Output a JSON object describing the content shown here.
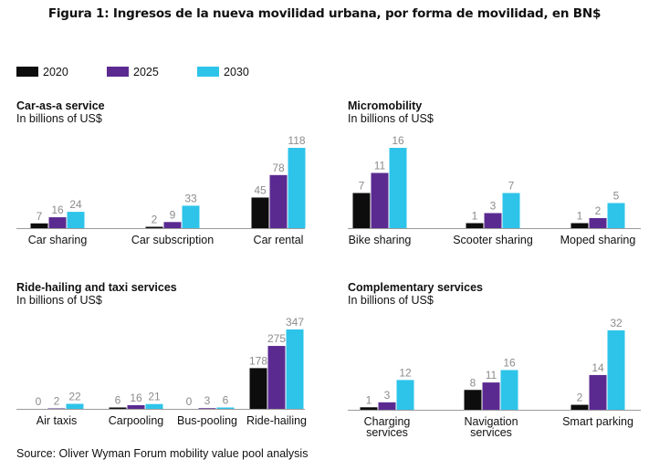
{
  "figure_title": "Figura 1: Ingresos de la nueva movilidad  urbana, por forma de movilidad,  en BN$",
  "legend": [
    {
      "label": "2020",
      "color": "#0d0d0d"
    },
    {
      "label": "2025",
      "color": "#5b2a91"
    },
    {
      "label": "2030",
      "color": "#2ec4ea"
    }
  ],
  "source": "Source: Oliver Wyman Forum mobility value pool analysis",
  "chart_data": [
    {
      "type": "bar",
      "title": "Car-as-a service",
      "subtitle": "In billions of US$",
      "categories": [
        "Car sharing",
        "Car subscription",
        "Car rental"
      ],
      "series": [
        {
          "name": "2020",
          "values": [
            7,
            2,
            45
          ]
        },
        {
          "name": "2025",
          "values": [
            16,
            9,
            78
          ]
        },
        {
          "name": "2030",
          "values": [
            24,
            33,
            118
          ]
        }
      ]
    },
    {
      "type": "bar",
      "title": "Micromobility",
      "subtitle": "In billions of US$",
      "categories": [
        "Bike sharing",
        "Scooter sharing",
        "Moped sharing"
      ],
      "series": [
        {
          "name": "2020",
          "values": [
            7,
            1,
            1
          ]
        },
        {
          "name": "2025",
          "values": [
            11,
            3,
            2
          ]
        },
        {
          "name": "2030",
          "values": [
            16,
            7,
            5
          ]
        }
      ]
    },
    {
      "type": "bar",
      "title": "Ride-hailing and taxi services",
      "subtitle": "In billions of US$",
      "categories": [
        "Air taxis",
        "Carpooling",
        "Bus-pooling",
        "Ride-hailing"
      ],
      "series": [
        {
          "name": "2020",
          "values": [
            0,
            6,
            0,
            178
          ]
        },
        {
          "name": "2025",
          "values": [
            2,
            16,
            3,
            275
          ]
        },
        {
          "name": "2030",
          "values": [
            22,
            21,
            6,
            347
          ]
        }
      ]
    },
    {
      "type": "bar",
      "title": "Complementary services",
      "subtitle": "In billions of US$",
      "categories": [
        "Charging\nservices",
        "Navigation\nservices",
        "Smart parking"
      ],
      "series": [
        {
          "name": "2020",
          "values": [
            1,
            8,
            2
          ]
        },
        {
          "name": "2025",
          "values": [
            3,
            11,
            14
          ]
        },
        {
          "name": "2030",
          "values": [
            12,
            16,
            32
          ]
        }
      ]
    }
  ]
}
